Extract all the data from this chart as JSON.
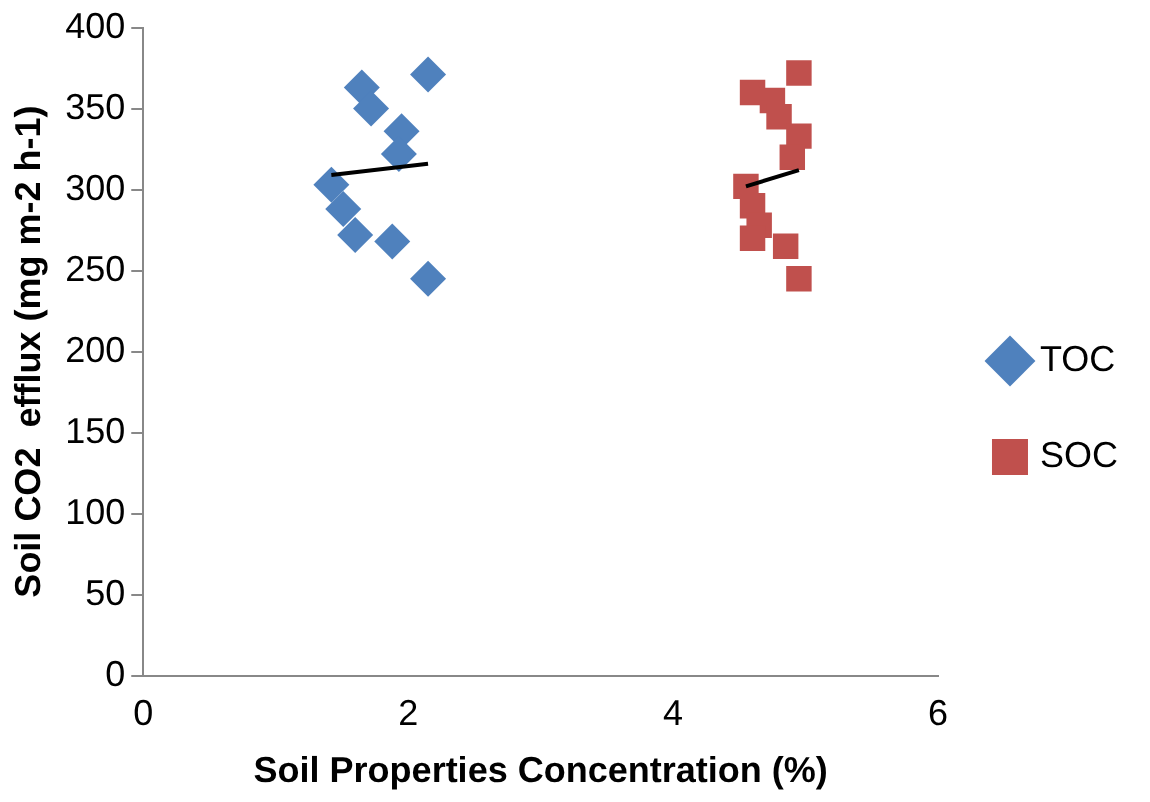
{
  "chart_data": {
    "type": "scatter",
    "xlabel": "Soil Properties Concentration (%)",
    "ylabel": "Soil CO2  efflux (mg m-2 h-1)",
    "xlim": [
      0,
      6
    ],
    "xticks": [
      0,
      2,
      4,
      6
    ],
    "ylim": [
      0,
      400
    ],
    "yticks": [
      0,
      50,
      100,
      150,
      200,
      250,
      300,
      350,
      400
    ],
    "grid": false,
    "legend": "right",
    "series": [
      {
        "name": "TOC",
        "color": "#4f81bd",
        "marker": "diamond",
        "x": [
          1.65,
          2.15,
          1.72,
          1.95,
          1.93,
          1.42,
          1.51,
          1.6,
          1.88,
          2.15
        ],
        "values": [
          363,
          371,
          350,
          336,
          322,
          303,
          288,
          272,
          268,
          245
        ]
      },
      {
        "name": "SOC",
        "color": "#c0504d",
        "marker": "square",
        "x": [
          4.6,
          4.95,
          4.75,
          4.8,
          4.95,
          4.9,
          4.55,
          4.6,
          4.65,
          4.6,
          4.85,
          4.95
        ],
        "values": [
          360,
          372,
          355,
          345,
          333,
          320,
          302,
          290,
          278,
          270,
          265,
          245
        ]
      },
      {
        "type": "line",
        "color": "#000000",
        "marker": "none",
        "x": [
          1.42,
          2.15
        ],
        "values": [
          309,
          316
        ]
      },
      {
        "type": "line",
        "color": "#000000",
        "marker": "none",
        "x": [
          4.55,
          4.95
        ],
        "values": [
          302,
          312
        ]
      }
    ]
  }
}
